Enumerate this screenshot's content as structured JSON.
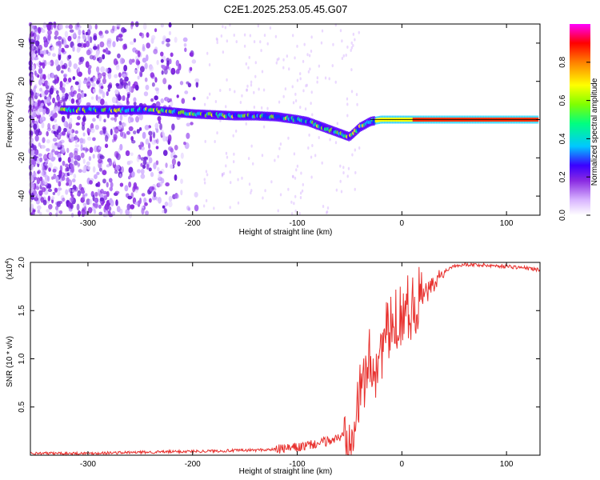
{
  "title": "C2E1.2025.253.05.45.G07",
  "chart_data": [
    {
      "type": "heatmap",
      "name": "spectrogram",
      "xlabel": "Height of straight line (km)",
      "ylabel": "Frequency (Hz)",
      "xlim": [
        -355,
        132
      ],
      "ylim": [
        -50,
        50
      ],
      "xticks": [
        -300,
        -200,
        -100,
        0,
        100
      ],
      "yticks": [
        -40,
        -20,
        0,
        20,
        40
      ],
      "colorbar": {
        "label": "Normalized spectral amplitude",
        "range": [
          0,
          1
        ],
        "ticks": [
          0.0,
          0.2,
          0.4,
          0.6,
          0.8
        ],
        "tick_labels": [
          "0.0",
          "0.2",
          "0.4",
          "0.6",
          "0.8"
        ],
        "colors": [
          "#ffffff",
          "#d8b4ff",
          "#8a2be2",
          "#3a00ff",
          "#0040ff",
          "#00c8ff",
          "#00ff80",
          "#80ff00",
          "#ffff00",
          "#ff8000",
          "#ff0000",
          "#ff00ff"
        ]
      },
      "ridge": {
        "x": [
          -320,
          -300,
          -280,
          -260,
          -240,
          -220,
          -200,
          -180,
          -160,
          -140,
          -120,
          -100,
          -90,
          -80,
          -70,
          -60,
          -50,
          -40,
          -30,
          -20,
          0,
          20,
          40,
          60,
          80,
          100,
          120,
          130
        ],
        "y": [
          5,
          5,
          5,
          5,
          5,
          4,
          3,
          2.5,
          2,
          2,
          1.5,
          0,
          -1,
          -3,
          -5,
          -7,
          -9,
          -4,
          -1,
          0,
          0,
          0,
          0,
          0,
          0,
          0,
          0,
          0
        ]
      }
    },
    {
      "type": "line",
      "name": "snr",
      "xlabel": "Height of straight line (km)",
      "ylabel": "SNR (10 * v/v)",
      "scale_label": "(x10",
      "scale_exp": "4",
      "scale_close": ")",
      "xlim": [
        -355,
        132
      ],
      "ylim": [
        0,
        2.0
      ],
      "xticks": [
        -300,
        -200,
        -100,
        0,
        100
      ],
      "yticks": [
        0.5,
        1.0,
        1.5,
        2.0
      ],
      "ytick_labels": [
        "0.5",
        "1.0",
        "1.5",
        "2.0"
      ],
      "color": "#e8312e",
      "x": [
        -355,
        -300,
        -250,
        -200,
        -150,
        -120,
        -100,
        -80,
        -70,
        -60,
        -50,
        -45,
        -40,
        -35,
        -30,
        -25,
        -20,
        -15,
        -10,
        -5,
        0,
        10,
        20,
        30,
        40,
        50,
        60,
        80,
        100,
        120,
        132
      ],
      "y": [
        0.02,
        0.02,
        0.03,
        0.04,
        0.05,
        0.06,
        0.08,
        0.12,
        0.15,
        0.18,
        0.25,
        0.45,
        0.6,
        0.85,
        1.0,
        0.9,
        1.1,
        1.25,
        1.3,
        1.4,
        1.5,
        1.55,
        1.65,
        1.75,
        1.9,
        1.97,
        1.98,
        1.97,
        1.96,
        1.94,
        1.92
      ]
    }
  ]
}
